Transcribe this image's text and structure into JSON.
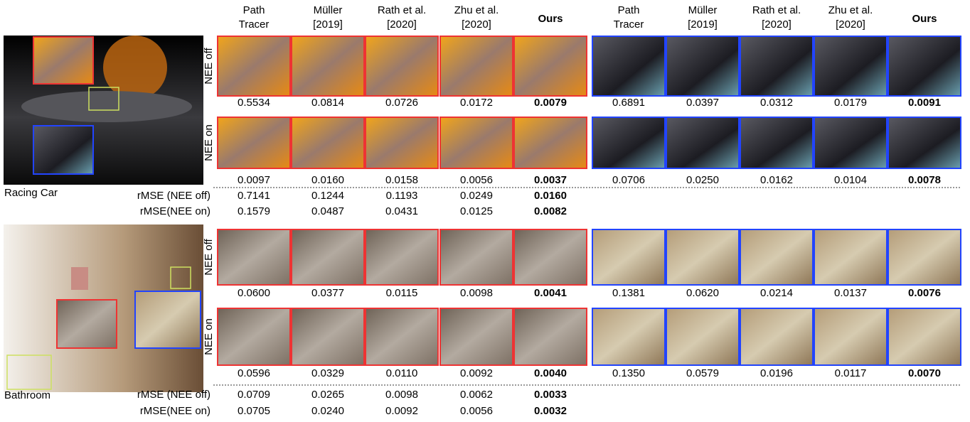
{
  "headers": [
    [
      "Path",
      "Tracer"
    ],
    [
      "Müller",
      "[2019]"
    ],
    [
      "Rath et al.",
      "[2020]"
    ],
    [
      "Zhu et al.",
      "[2020]"
    ],
    [
      "Ours"
    ]
  ],
  "scenes": [
    {
      "name": "Racing Car",
      "rows": [
        {
          "label": "NEE off",
          "left": [
            "0.5534",
            "0.0814",
            "0.0726",
            "0.0172",
            "0.0079"
          ],
          "right": [
            "0.6891",
            "0.0397",
            "0.0312",
            "0.0179",
            "0.0091"
          ]
        },
        {
          "label": "NEE on",
          "left": [
            "0.0097",
            "0.0160",
            "0.0158",
            "0.0056",
            "0.0037"
          ],
          "right": [
            "0.0706",
            "0.0250",
            "0.0162",
            "0.0104",
            "0.0078"
          ]
        }
      ],
      "rmse": [
        {
          "label": "rMSE (NEE off)",
          "values": [
            "0.7141",
            "0.1244",
            "0.1193",
            "0.0249",
            "0.0160"
          ]
        },
        {
          "label": "rMSE(NEE on)",
          "values": [
            "0.1579",
            "0.0487",
            "0.0431",
            "0.0125",
            "0.0082"
          ]
        }
      ]
    },
    {
      "name": "Bathroom",
      "rows": [
        {
          "label": "NEE off",
          "left": [
            "0.0600",
            "0.0377",
            "0.0115",
            "0.0098",
            "0.0041"
          ],
          "right": [
            "0.1381",
            "0.0620",
            "0.0214",
            "0.0137",
            "0.0076"
          ]
        },
        {
          "label": "NEE on",
          "left": [
            "0.0596",
            "0.0329",
            "0.0110",
            "0.0092",
            "0.0040"
          ],
          "right": [
            "0.1350",
            "0.0579",
            "0.0196",
            "0.0117",
            "0.0070"
          ]
        }
      ],
      "rmse": [
        {
          "label": "rMSE (NEE off)",
          "values": [
            "0.0709",
            "0.0265",
            "0.0098",
            "0.0062",
            "0.0033"
          ]
        },
        {
          "label": "rMSE(NEE on)",
          "values": [
            "0.0705",
            "0.0240",
            "0.0092",
            "0.0056",
            "0.0032"
          ]
        }
      ]
    }
  ]
}
